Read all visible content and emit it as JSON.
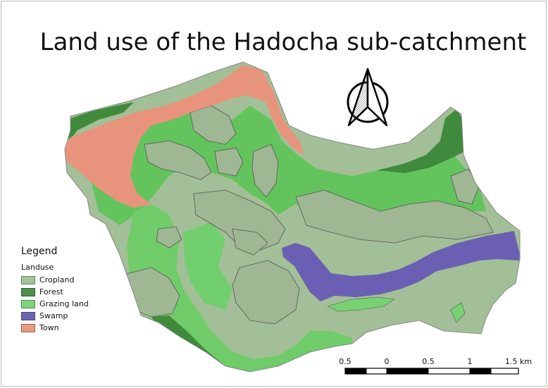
{
  "title": "Land use of the Hadocha sub-catchment",
  "legend": {
    "title": "Legend",
    "subtitle": "Landuse",
    "items": [
      {
        "label": "Cropland",
        "color": "#a6c49b"
      },
      {
        "label": "Forest",
        "color": "#4d8f4a"
      },
      {
        "label": "Grazing land",
        "color": "#7ed67a"
      },
      {
        "label": "Swamp",
        "color": "#6f63b5"
      },
      {
        "label": "Town",
        "color": "#e89a84"
      }
    ]
  },
  "scale_bar": {
    "labels": [
      "0.5",
      "0",
      "0.5",
      "1",
      "1.5 km"
    ]
  },
  "north_arrow": {
    "icon": "north-arrow-icon"
  }
}
